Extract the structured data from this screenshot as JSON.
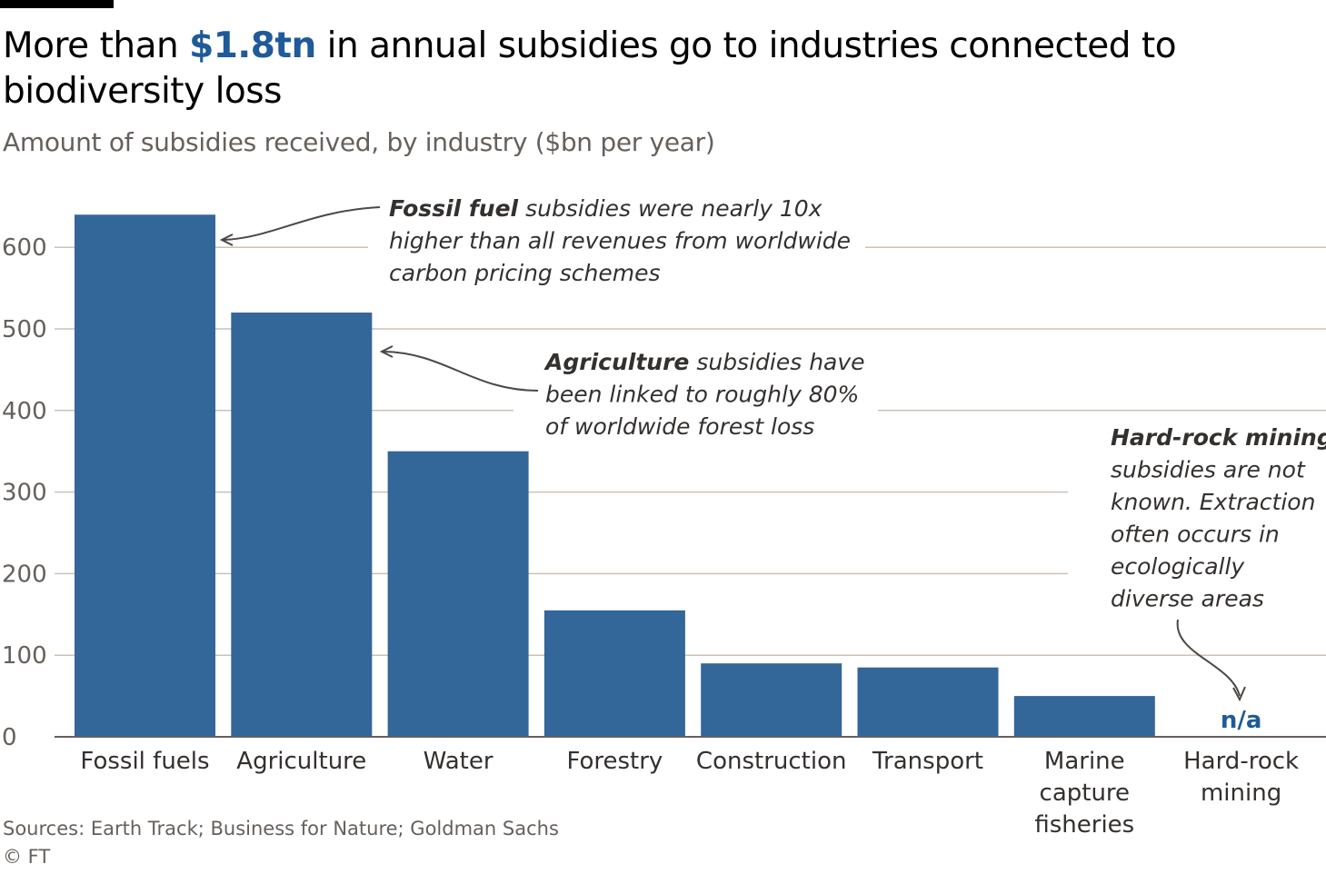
{
  "title_parts": {
    "before": "More than ",
    "highlight": "$1.8tn",
    "after": " in annual subsidies go to industries connected to biodiversity loss"
  },
  "subtitle": "Amount of subsidies received, by industry ($bn per year)",
  "source": "Sources: Earth Track; Business for Nature; Goldman Sachs",
  "credit": "© FT",
  "colors": {
    "bar": "#336699",
    "highlight": "#1f5a99",
    "grid": "#ccc1b7"
  },
  "chart_data": {
    "type": "bar",
    "title": "More than $1.8tn in annual subsidies go to industries connected to biodiversity loss",
    "subtitle": "Amount of subsidies received, by industry ($bn per year)",
    "categories": [
      [
        "Fossil fuels"
      ],
      [
        "Agriculture"
      ],
      [
        "Water"
      ],
      [
        "Forestry"
      ],
      [
        "Construction"
      ],
      [
        "Transport"
      ],
      [
        "Marine",
        "capture",
        "fisheries"
      ],
      [
        "Hard-rock",
        "mining"
      ]
    ],
    "values": [
      640,
      520,
      350,
      155,
      90,
      85,
      50,
      null
    ],
    "missing_label": "n/a",
    "ylim": [
      0,
      640
    ],
    "yticks": [
      0,
      100,
      200,
      300,
      400,
      500,
      600
    ],
    "grid": true,
    "annotations": [
      {
        "target": "Fossil fuels",
        "bold": "Fossil fuel",
        "lines": [
          "Fossil fuel subsidies were nearly 10x",
          "higher than all revenues from worldwide",
          "carbon pricing schemes"
        ]
      },
      {
        "target": "Agriculture",
        "bold": "Agriculture",
        "lines": [
          "Agriculture subsidies have",
          "been linked to roughly 80%",
          "of worldwide forest loss"
        ]
      },
      {
        "target": "Hard-rock mining",
        "bold": "Hard-rock mining",
        "lines": [
          "Hard-rock mining",
          "subsidies are not",
          "known. Extraction",
          "often occurs in",
          "ecologically",
          "diverse areas"
        ]
      }
    ]
  }
}
